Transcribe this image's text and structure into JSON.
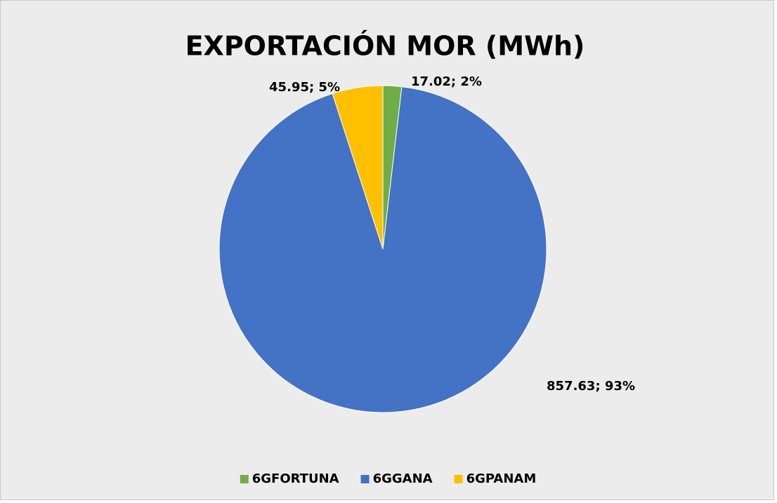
{
  "chart_data": {
    "type": "pie",
    "title": "EXPORTACIÓN MOR (MWh)",
    "categories": [
      "6GFORTUNA",
      "6GGANA",
      "6GPANAM"
    ],
    "values": [
      17.02,
      857.63,
      45.95
    ],
    "value_labels": [
      "17.02; 2%",
      "857.63; 93%",
      "45.95; 5%"
    ],
    "colors": [
      "#70ad47",
      "#4472c4",
      "#ffc000"
    ],
    "legend": "bottom"
  }
}
